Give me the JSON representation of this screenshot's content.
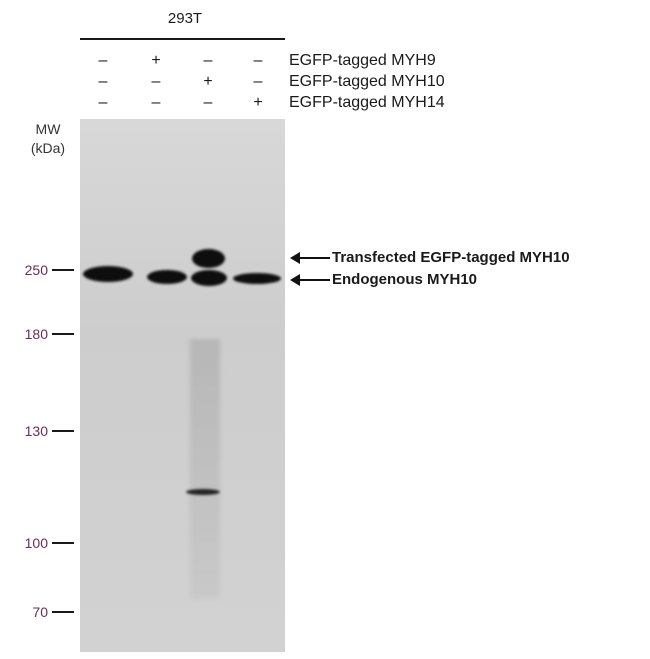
{
  "cell_line": "293T",
  "conditions": [
    {
      "label": "EGFP-tagged MYH9",
      "signs": [
        "–",
        "+",
        "–",
        "–"
      ]
    },
    {
      "label": "EGFP-tagged MYH10",
      "signs": [
        "–",
        "–",
        "+",
        "–"
      ]
    },
    {
      "label": "EGFP-tagged MYH14",
      "signs": [
        "–",
        "–",
        "–",
        "+"
      ]
    }
  ],
  "mw_title": [
    "MW",
    "(kDa)"
  ],
  "markers": [
    "250",
    "180",
    "130",
    "100",
    "70"
  ],
  "band_labels": [
    "Transfected EGFP-tagged MYH10",
    "Endogenous MYH10"
  ],
  "colors": {
    "blot_background": "#d2d2d2",
    "band": "#0e0e0e",
    "text": "#1a1a1a",
    "marker_text": "#6b2c55"
  }
}
